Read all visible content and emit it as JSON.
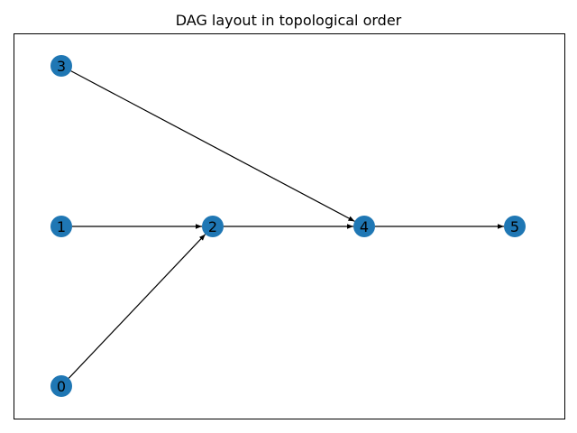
{
  "figure": {
    "title": "DAG layout in topological order"
  },
  "graph": {
    "colors": {
      "node_fill": "#1f77b4",
      "edge": "#000000",
      "label": "#000000"
    },
    "nodes": [
      {
        "id": "0",
        "label": "0"
      },
      {
        "id": "1",
        "label": "1"
      },
      {
        "id": "2",
        "label": "2"
      },
      {
        "id": "3",
        "label": "3"
      },
      {
        "id": "4",
        "label": "4"
      },
      {
        "id": "5",
        "label": "5"
      }
    ],
    "edges": [
      {
        "from": "0",
        "to": "2"
      },
      {
        "from": "1",
        "to": "2"
      },
      {
        "from": "2",
        "to": "4"
      },
      {
        "from": "3",
        "to": "4"
      },
      {
        "from": "4",
        "to": "5"
      }
    ]
  }
}
